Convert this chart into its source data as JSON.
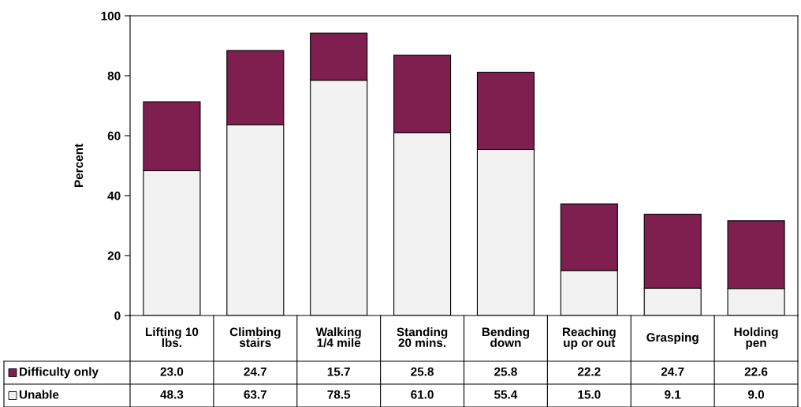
{
  "chart_data": {
    "type": "bar",
    "stacked": true,
    "ylabel": "Percent",
    "categories": [
      "Lifting 10\nlbs.",
      "Climbing\nstairs",
      "Walking\n1/4 mile",
      "Standing\n20 mins.",
      "Bending\ndown",
      "Reaching\nup or out",
      "Grasping",
      "Holding\npen"
    ],
    "series": [
      {
        "name": "Unable",
        "color": "#f2f2f2",
        "values": [
          48.3,
          63.7,
          78.5,
          61.0,
          55.4,
          15.0,
          9.1,
          9.0
        ],
        "value_labels": [
          "48.3",
          "63.7",
          "78.5",
          "61.0",
          "55.4",
          "15.0",
          "9.1",
          "9.0"
        ]
      },
      {
        "name": "Difficulty only",
        "color": "#7f1f4f",
        "values": [
          23.0,
          24.7,
          15.7,
          25.8,
          25.8,
          22.2,
          24.7,
          22.6
        ],
        "value_labels": [
          "23.0",
          "24.7",
          "15.7",
          "25.8",
          "25.8",
          "22.2",
          "24.7",
          "22.6"
        ]
      }
    ],
    "ylim": [
      0,
      100
    ],
    "yticks": [
      0,
      20,
      40,
      60,
      80,
      100
    ],
    "grid": false,
    "legend": "bottom"
  }
}
